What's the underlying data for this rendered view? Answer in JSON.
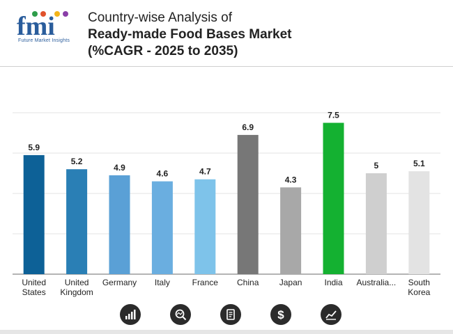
{
  "header": {
    "logo_caption": "Future Market Insights",
    "title_line1": "Country-wise Analysis of",
    "title_line2": "Ready-made Food Bases Market",
    "title_line3": "(%CAGR - 2025 to 2035)"
  },
  "chart_data": {
    "type": "bar",
    "title": "Country-wise Analysis of Ready-made Food Bases Market (%CAGR - 2025 to 2035)",
    "xlabel": "",
    "ylabel": "",
    "ylim": [
      0,
      8
    ],
    "grid": true,
    "categories": [
      [
        "United",
        "States"
      ],
      [
        "United",
        "Kingdom"
      ],
      [
        "Germany"
      ],
      [
        "Italy"
      ],
      [
        "France"
      ],
      [
        "China"
      ],
      [
        "Japan"
      ],
      [
        "India"
      ],
      [
        "Australia..."
      ],
      [
        "South",
        "Korea"
      ]
    ],
    "values": [
      5.9,
      5.2,
      4.9,
      4.6,
      4.7,
      6.9,
      4.3,
      7.5,
      5,
      5.1
    ],
    "value_labels": [
      "5.9",
      "5.2",
      "4.9",
      "4.6",
      "4.7",
      "6.9",
      "4.3",
      "7.5",
      "5",
      "5.1"
    ],
    "colors": [
      "#0d6197",
      "#2a7fb5",
      "#5aa0d6",
      "#6aaee0",
      "#7ec3ea",
      "#777777",
      "#a8a8a8",
      "#14b131",
      "#cfcfcf",
      "#e3e3e3"
    ]
  },
  "footer_icons": [
    "growth-chart-icon",
    "magnifier-chart-icon",
    "document-icon",
    "dollar-icon",
    "trend-chart-icon"
  ]
}
